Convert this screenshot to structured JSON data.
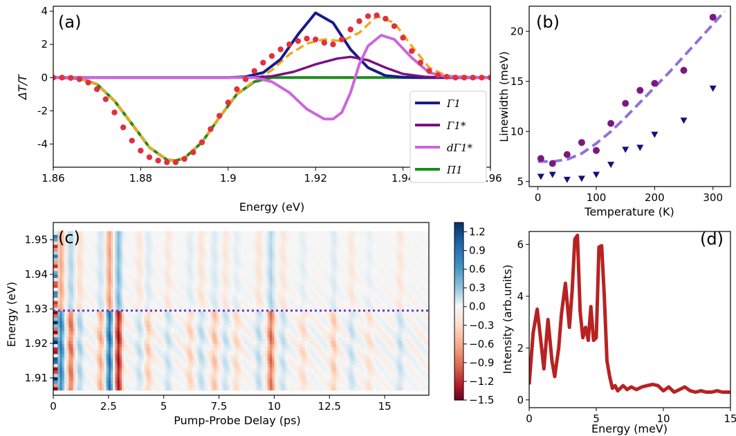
{
  "chart_data": [
    {
      "panel_label": "(a)",
      "type": "line",
      "xlabel": "Energy (eV)",
      "ylabel": "ΔT/T",
      "xlim": [
        1.86,
        1.96
      ],
      "ylim": [
        -5.4,
        4.3
      ],
      "x_ticks": [
        "1.86",
        "1.88",
        "1.9",
        "1.92",
        "1.94",
        "1.96"
      ],
      "y_ticks": [
        "4",
        "2",
        "0",
        "-2",
        "-4"
      ],
      "legend_position": "lower-right",
      "series": [
        {
          "name": "Γ1",
          "style": "line",
          "color": "#1a1a8c",
          "x": [
            1.86,
            1.9,
            1.904,
            1.908,
            1.912,
            1.916,
            1.92,
            1.924,
            1.928,
            1.932,
            1.936,
            1.94,
            1.944,
            1.96
          ],
          "y": [
            0,
            0,
            0.05,
            0.3,
            1.1,
            2.6,
            3.9,
            3.3,
            1.7,
            0.6,
            0.12,
            0.02,
            0,
            0
          ]
        },
        {
          "name": "Γ1*",
          "style": "line",
          "color": "#7a1080",
          "x": [
            1.86,
            1.905,
            1.91,
            1.915,
            1.92,
            1.925,
            1.928,
            1.932,
            1.936,
            1.94,
            1.945,
            1.95,
            1.96
          ],
          "y": [
            0,
            0,
            0.08,
            0.35,
            0.8,
            1.15,
            1.25,
            1.05,
            0.6,
            0.22,
            0.05,
            0,
            0
          ]
        },
        {
          "name": "dΓ1*",
          "style": "line",
          "color": "#cc66dd",
          "x": [
            1.86,
            1.906,
            1.91,
            1.914,
            1.918,
            1.922,
            1.924,
            1.926,
            1.928,
            1.93,
            1.932,
            1.935,
            1.938,
            1.942,
            1.946,
            1.95,
            1.96
          ],
          "y": [
            0,
            0,
            -0.25,
            -0.9,
            -1.9,
            -2.5,
            -2.5,
            -2.1,
            -0.9,
            0.8,
            1.9,
            2.55,
            2.3,
            1.2,
            0.3,
            0.05,
            0
          ]
        },
        {
          "name": "Π1",
          "style": "line",
          "color": "#1a8c1a",
          "x": [
            1.86,
            1.866,
            1.87,
            1.874,
            1.878,
            1.882,
            1.886,
            1.888,
            1.89,
            1.894,
            1.898,
            1.902,
            1.906,
            1.91,
            1.96
          ],
          "y": [
            0,
            -0.05,
            -0.4,
            -1.4,
            -2.8,
            -4.2,
            -4.95,
            -5.0,
            -4.85,
            -3.9,
            -2.4,
            -1.0,
            -0.25,
            0,
            0
          ]
        },
        {
          "name": "total fit",
          "style": "dashed",
          "color": "#f2a81d",
          "x": [
            1.86,
            1.866,
            1.87,
            1.874,
            1.878,
            1.882,
            1.886,
            1.888,
            1.89,
            1.894,
            1.898,
            1.902,
            1.906,
            1.91,
            1.914,
            1.918,
            1.922,
            1.926,
            1.93,
            1.934,
            1.938,
            1.942,
            1.946,
            1.95,
            1.96
          ],
          "y": [
            0,
            -0.05,
            -0.4,
            -1.4,
            -2.8,
            -4.2,
            -4.95,
            -5.0,
            -4.85,
            -3.9,
            -2.4,
            -1.0,
            -0.2,
            0.45,
            1.4,
            2.05,
            2.3,
            2.2,
            2.7,
            3.7,
            3.3,
            1.9,
            0.6,
            0.1,
            0
          ]
        },
        {
          "name": "data",
          "style": "markers",
          "color": "#e03040",
          "x": [
            1.86,
            1.862,
            1.864,
            1.866,
            1.868,
            1.87,
            1.872,
            1.874,
            1.876,
            1.878,
            1.88,
            1.882,
            1.884,
            1.886,
            1.888,
            1.89,
            1.892,
            1.894,
            1.896,
            1.898,
            1.9,
            1.902,
            1.904,
            1.906,
            1.908,
            1.91,
            1.912,
            1.914,
            1.916,
            1.918,
            1.92,
            1.922,
            1.924,
            1.926,
            1.928,
            1.93,
            1.932,
            1.934,
            1.936,
            1.938,
            1.94,
            1.942,
            1.944,
            1.946,
            1.948,
            1.95,
            1.952,
            1.954,
            1.956,
            1.958,
            1.96
          ],
          "y": [
            0,
            0,
            -0.02,
            -0.1,
            -0.3,
            -0.7,
            -1.3,
            -2.1,
            -3.0,
            -3.8,
            -4.4,
            -4.8,
            -5.0,
            -5.1,
            -5.1,
            -4.9,
            -4.5,
            -3.9,
            -3.1,
            -2.3,
            -1.5,
            -0.7,
            -0.1,
            0.4,
            0.9,
            1.3,
            1.7,
            2.0,
            2.2,
            2.35,
            2.3,
            2.1,
            2.0,
            2.3,
            2.9,
            3.4,
            3.7,
            3.75,
            3.55,
            3.1,
            2.4,
            1.6,
            0.9,
            0.4,
            0.15,
            0.05,
            0,
            0,
            0,
            0,
            0
          ]
        }
      ]
    },
    {
      "panel_label": "(b)",
      "type": "scatter",
      "xlabel": "Temperature (K)",
      "ylabel": "Linewidth (meV)",
      "xlim": [
        -15,
        330
      ],
      "ylim": [
        4.5,
        22.5
      ],
      "x_ticks": [
        "0",
        "100",
        "200",
        "300"
      ],
      "y_ticks": [
        "5",
        "10",
        "15",
        "20"
      ],
      "series": [
        {
          "name": "circles",
          "marker": "circle",
          "color": "#7a1a80",
          "x": [
            5,
            25,
            50,
            75,
            100,
            125,
            150,
            175,
            200,
            250,
            300
          ],
          "y": [
            7.3,
            6.8,
            7.7,
            8.9,
            8.1,
            10.8,
            12.8,
            14.1,
            14.8,
            16.1,
            21.4
          ]
        },
        {
          "name": "triangles",
          "marker": "triangle-down",
          "color": "#12127a",
          "x": [
            5,
            25,
            50,
            75,
            100,
            125,
            150,
            175,
            200,
            250,
            300
          ],
          "y": [
            5.5,
            5.7,
            5.2,
            5.3,
            5.7,
            6.7,
            8.2,
            8.4,
            9.7,
            11.1,
            14.3
          ]
        },
        {
          "name": "fit",
          "style": "dashed",
          "color": "#9370db",
          "x": [
            0,
            25,
            50,
            75,
            100,
            125,
            150,
            175,
            200,
            225,
            250,
            275,
            300,
            320
          ],
          "y": [
            7.0,
            7.0,
            7.2,
            7.8,
            8.8,
            10.0,
            11.4,
            12.9,
            14.4,
            15.9,
            17.5,
            19.1,
            20.7,
            22.0
          ]
        }
      ]
    },
    {
      "panel_label": "(c)",
      "type": "heatmap",
      "xlabel": "Pump-Probe Delay (ps)",
      "ylabel": "Energy (eV)",
      "xlim": [
        0,
        17
      ],
      "ylim": [
        1.905,
        1.955
      ],
      "x_ticks": [
        "0",
        "2.5",
        "5",
        "7.5",
        "10",
        "12.5",
        "15"
      ],
      "y_ticks": [
        "1.95",
        "1.94",
        "1.93",
        "1.92",
        "1.91"
      ],
      "colorbar_ticks": [
        "1.2",
        "0.9",
        "0.6",
        "0.3",
        "0.0",
        "−0.3",
        "−0.6",
        "−0.9",
        "−1.2",
        "−1.5"
      ],
      "colorbar_range": [
        -1.5,
        1.35
      ],
      "dotted_line_energy": 1.9295
    },
    {
      "panel_label": "(d)",
      "type": "line",
      "xlabel": "Energy (meV)",
      "ylabel": "Intensity (arb.units)",
      "xlim": [
        0,
        15
      ],
      "ylim": [
        -0.3,
        6.5
      ],
      "x_ticks": [
        "0",
        "5",
        "10",
        "15"
      ],
      "y_ticks": [
        "0",
        "2",
        "4",
        "6"
      ],
      "series": [
        {
          "name": "spectrum",
          "color": "#b82222",
          "x": [
            0,
            0.3,
            0.6,
            0.8,
            1.1,
            1.4,
            1.7,
            1.9,
            2.2,
            2.4,
            2.7,
            3.0,
            3.2,
            3.4,
            3.6,
            3.8,
            4.0,
            4.2,
            4.4,
            4.6,
            4.8,
            5.0,
            5.2,
            5.4,
            5.6,
            5.8,
            6.0,
            6.2,
            6.4,
            6.6,
            6.8,
            7.0,
            7.3,
            7.6,
            8.0,
            8.4,
            8.8,
            9.2,
            9.6,
            10.0,
            10.4,
            10.8,
            11.2,
            11.6,
            12.0,
            12.4,
            12.8,
            13.2,
            13.6,
            14.0,
            14.4,
            14.8,
            15.0
          ],
          "y": [
            0.6,
            2.6,
            3.5,
            2.6,
            1.2,
            3.1,
            1.5,
            0.9,
            2.0,
            3.3,
            4.5,
            2.8,
            4.2,
            6.2,
            6.35,
            3.4,
            2.4,
            2.8,
            2.3,
            3.6,
            2.3,
            2.4,
            5.9,
            5.95,
            4.0,
            1.5,
            0.9,
            0.45,
            0.55,
            0.35,
            0.45,
            0.55,
            0.4,
            0.5,
            0.4,
            0.5,
            0.55,
            0.6,
            0.55,
            0.35,
            0.5,
            0.3,
            0.4,
            0.5,
            0.35,
            0.3,
            0.35,
            0.3,
            0.3,
            0.35,
            0.3,
            0.3,
            0.3
          ]
        }
      ]
    }
  ]
}
